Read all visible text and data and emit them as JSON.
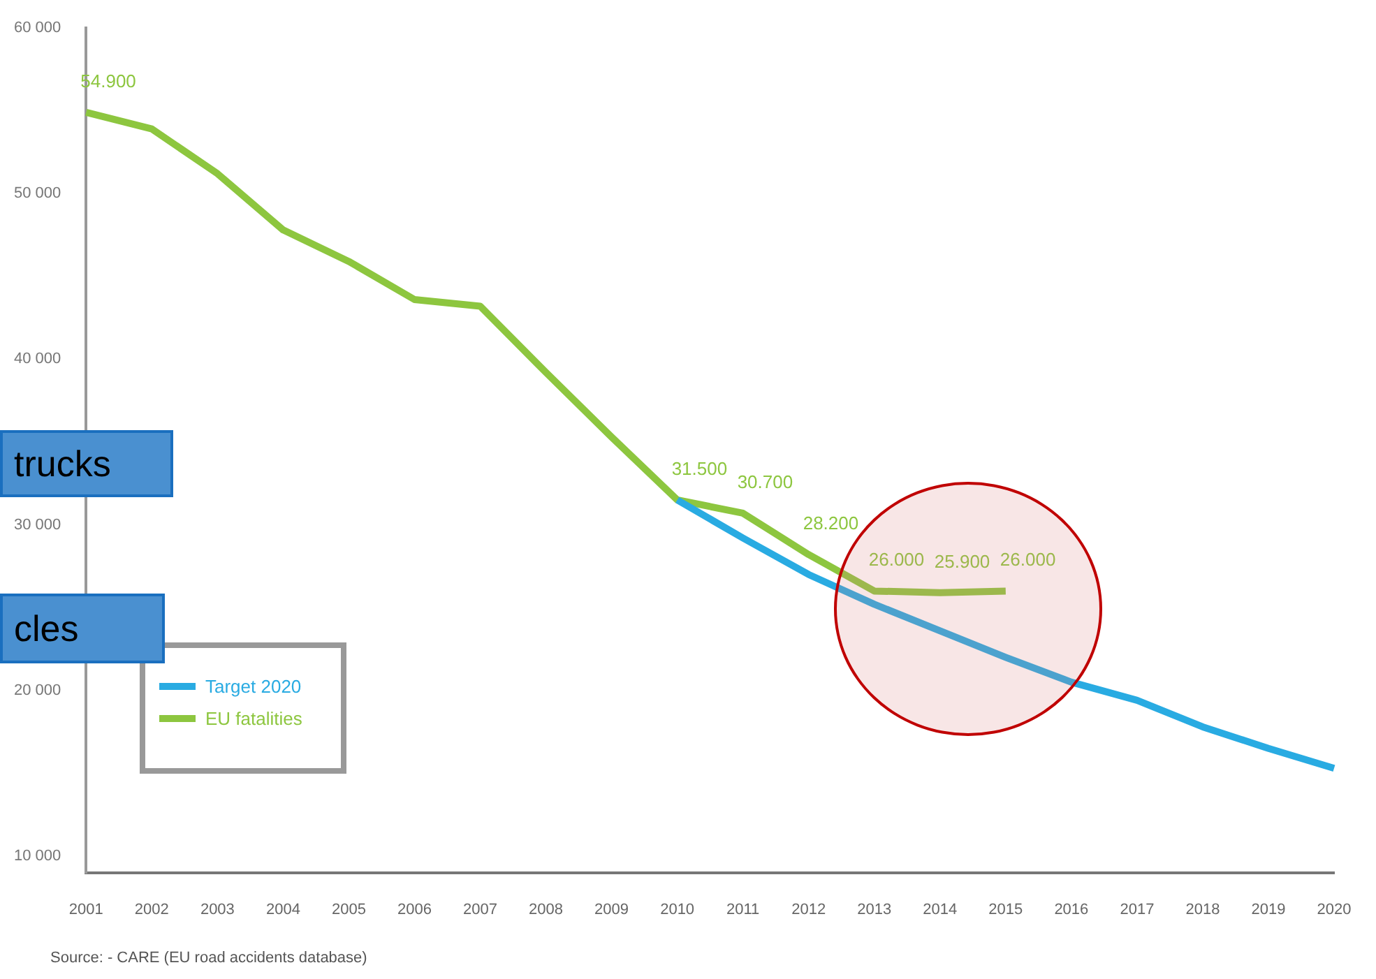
{
  "chart_data": {
    "type": "line",
    "categories": [
      "2001",
      "2002",
      "2003",
      "2004",
      "2005",
      "2006",
      "2007",
      "2008",
      "2009",
      "2010",
      "2011",
      "2012",
      "2013",
      "2014",
      "2015",
      "2016",
      "2017",
      "2018",
      "2019",
      "2020"
    ],
    "series": [
      {
        "name": "Target 2020",
        "color": "#29abe2",
        "values": [
          null,
          null,
          null,
          null,
          null,
          null,
          null,
          null,
          null,
          31500,
          29200,
          27000,
          25200,
          23600,
          22000,
          20500,
          19400,
          17800,
          16500,
          15300
        ]
      },
      {
        "name": "EU fatalities",
        "color": "#8dc63f",
        "values": [
          54900,
          53900,
          51200,
          47800,
          45900,
          43600,
          43200,
          39200,
          35300,
          31500,
          30700,
          28200,
          26000,
          25900,
          26000,
          null,
          null,
          null,
          null,
          null
        ],
        "value_labels": [
          "54.900",
          null,
          null,
          null,
          null,
          null,
          null,
          null,
          null,
          "31.500",
          "30.700",
          "28.200",
          "26.000",
          "25.900",
          "26.000",
          null,
          null,
          null,
          null,
          null
        ]
      }
    ],
    "ylim": [
      9000,
      60000
    ],
    "yticks": [
      {
        "value": 10000,
        "label": "10 000"
      },
      {
        "value": 20000,
        "label": "20 000"
      },
      {
        "value": 30000,
        "label": "30 000"
      },
      {
        "value": 40000,
        "label": "40 000"
      },
      {
        "value": 50000,
        "label": "50 000"
      },
      {
        "value": 60000,
        "label": "60 000"
      }
    ],
    "legend": "bottom left",
    "marker": "none",
    "line_style": "solid",
    "annotations": [
      "trucks",
      "cles",
      "Source: - CARE (EU road accidents database)"
    ]
  }
}
